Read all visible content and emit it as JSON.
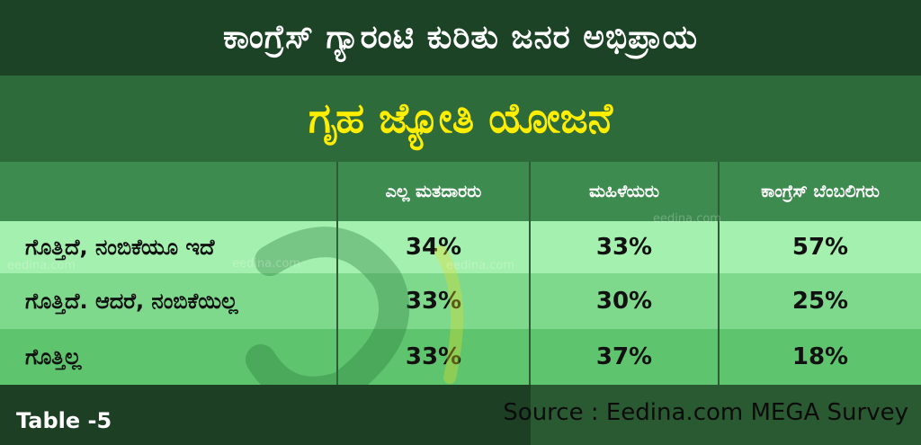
{
  "header": {
    "title": "ಕಾಂಗ್ರೆಸ್ ಗ್ಯಾರಂಟಿ ಕುರಿತು ಜನರ ಅಭಿಪ್ರಾಯ"
  },
  "subheader": {
    "title": "ಗೃಹ ಜ್ಯೋತಿ ಯೋಜನೆ"
  },
  "table": {
    "columns": [
      "",
      "ಎಲ್ಲ ಮತದಾರರು",
      "ಮಹಿಳೆಯರು",
      "ಕಾಂಗ್ರೆಸ್ ಬೆಂಬಲಿಗರು"
    ],
    "rows": [
      {
        "label": "ಗೊತ್ತಿದೆ, ನಂಬಿಕೆಯೂ ಇದೆ",
        "values": [
          "34%",
          "33%",
          "57%"
        ]
      },
      {
        "label": "ಗೊತ್ತಿದೆ. ಆದರೆ, ನಂಬಿಕೆಯಿಲ್ಲ",
        "values": [
          "33%",
          "30%",
          "25%"
        ]
      },
      {
        "label": "ಗೊತ್ತಿಲ್ಲ",
        "values": [
          "33%",
          "37%",
          "18%"
        ]
      }
    ]
  },
  "footer": {
    "table_label": "Table -5",
    "source": "Source : Eedina.com MEGA Survey"
  },
  "watermark": "eedina.com"
}
